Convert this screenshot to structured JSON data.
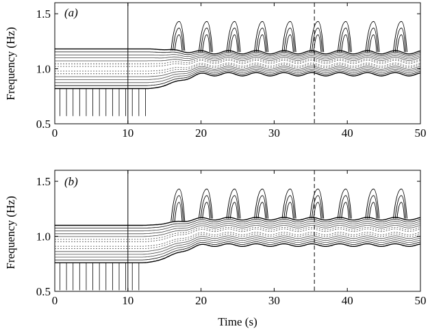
{
  "chart_data": [
    {
      "type": "contour",
      "panel_label": "(a)",
      "xlabel": "",
      "ylabel": "Frequency (Hz)",
      "xlim": [
        0,
        50
      ],
      "ylim": [
        0.5,
        1.6
      ],
      "x_ticks": [
        "0",
        "10",
        "20",
        "30",
        "40",
        "50"
      ],
      "y_ticks": [
        "0.5",
        "1.0",
        "1.5"
      ],
      "x_tick_values": [
        0,
        10,
        20,
        30,
        40,
        50
      ],
      "y_tick_values": [
        0.5,
        1.0,
        1.5
      ],
      "solid_vertical_line_x": 10,
      "dashed_vertical_line_x": 35.5,
      "ridge": {
        "pre_center": 1.0,
        "pre_half_band": 0.18,
        "transition_start": 12.5,
        "transition_end": 21,
        "post_center": 1.05,
        "post_half_band": 0.1,
        "oscillation_period": 3.8,
        "oscillation_amplitude": 0.015,
        "crest_top": 1.43
      }
    },
    {
      "type": "contour",
      "panel_label": "(b)",
      "xlabel": "Time (s)",
      "ylabel": "Frequency (Hz)",
      "xlim": [
        0,
        50
      ],
      "ylim": [
        0.5,
        1.6
      ],
      "x_ticks": [
        "0",
        "10",
        "20",
        "30",
        "40",
        "50"
      ],
      "y_ticks": [
        "0.5",
        "1.0",
        "1.5"
      ],
      "x_tick_values": [
        0,
        10,
        20,
        30,
        40,
        50
      ],
      "y_tick_values": [
        0.5,
        1.0,
        1.5
      ],
      "solid_vertical_line_x": 10,
      "dashed_vertical_line_x": 35.5,
      "ridge": {
        "pre_center": 0.93,
        "pre_half_band": 0.17,
        "transition_start": 12,
        "transition_end": 21,
        "post_center": 1.04,
        "post_half_band": 0.12,
        "oscillation_period": 3.8,
        "oscillation_amplitude": 0.012,
        "crest_top": 1.43
      }
    }
  ]
}
